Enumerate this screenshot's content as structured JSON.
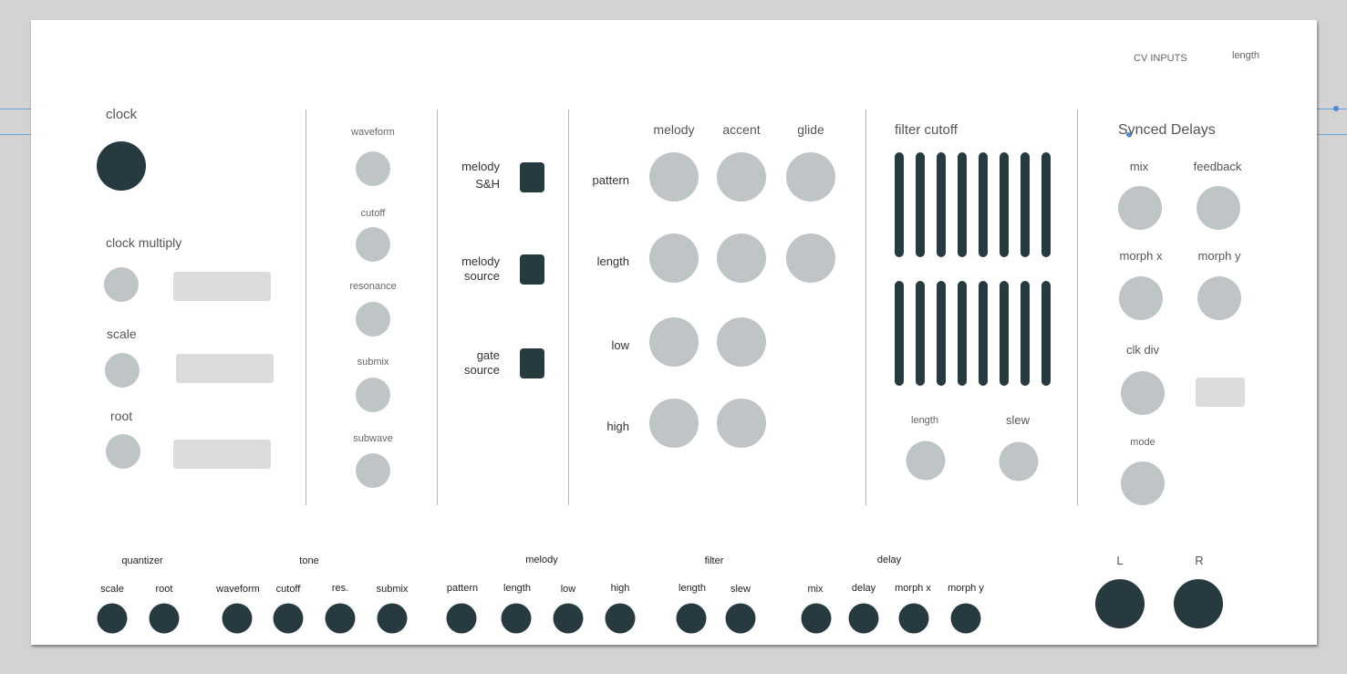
{
  "header": {
    "cv_inputs": "CV INPUTS",
    "length": "length"
  },
  "clock_section": {
    "clock": "clock",
    "clock_multiply": "clock multiply",
    "scale": "scale",
    "root": "root"
  },
  "tone_section": {
    "waveform": "waveform",
    "cutoff": "cutoff",
    "resonance": "resonance",
    "submix": "submix",
    "subwave": "subwave"
  },
  "switch_section": {
    "melody_sh_line1": "melody",
    "melody_sh_line2": "S&H",
    "melody_source_line1": "melody",
    "melody_source_line2": "source",
    "gate_source_line1": "gate",
    "gate_source_line2": "source"
  },
  "sequencer_section": {
    "col_melody": "melody",
    "col_accent": "accent",
    "col_glide": "glide",
    "row_pattern": "pattern",
    "row_length": "length",
    "row_low": "low",
    "row_high": "high"
  },
  "filter_section": {
    "title": "filter cutoff",
    "length": "length",
    "slew": "slew"
  },
  "delay_section": {
    "title": "Synced Delays",
    "mix": "mix",
    "feedback": "feedback",
    "morph_x": "morph x",
    "morph_y": "morph y",
    "clk_div": "clk div",
    "mode": "mode"
  },
  "jacks": {
    "quantizer": {
      "title": "quantizer",
      "scale": "scale",
      "root": "root"
    },
    "tone": {
      "title": "tone",
      "waveform": "waveform",
      "cutoff": "cutoff",
      "res": "res.",
      "submix": "submix"
    },
    "melody": {
      "title": "melody",
      "pattern": "pattern",
      "length": "length",
      "low": "low",
      "high": "high"
    },
    "filter": {
      "title": "filter",
      "length": "length",
      "slew": "slew"
    },
    "delay": {
      "title": "delay",
      "mix": "mix",
      "delay": "delay",
      "morph_x": "morph x",
      "morph_y": "morph y"
    },
    "outputs": {
      "left": "L",
      "right": "R"
    }
  },
  "colors": {
    "panel": "#ffffff",
    "background": "#d3d3d3",
    "knob": "#bfc5c6",
    "jack": "#273a40",
    "display": "#dcdcdc",
    "guide": "#6a9fd8"
  }
}
